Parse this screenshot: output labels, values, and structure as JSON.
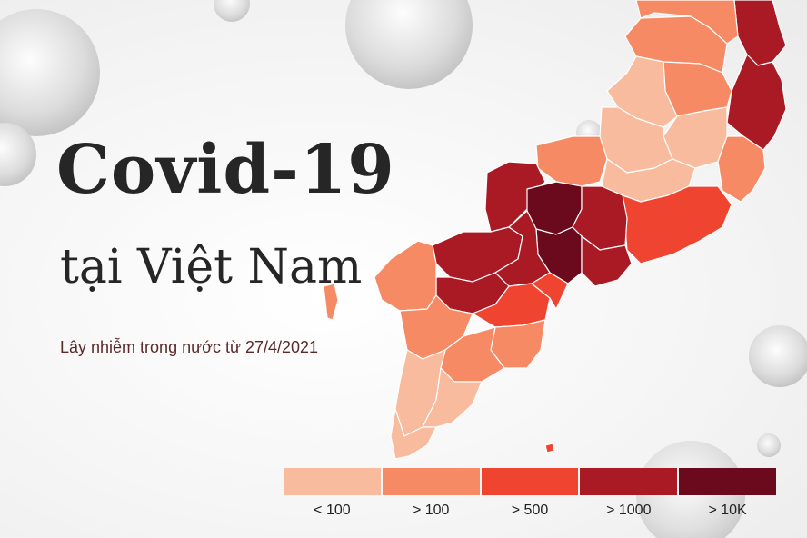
{
  "title": "Covid-19",
  "subtitle": "tại Việt Nam",
  "caption": "Lây nhiễm trong nước từ 27/4/2021",
  "legend": [
    {
      "label": "< 100",
      "color": "#f8bb9d"
    },
    {
      "label": "> 100",
      "color": "#f68a65"
    },
    {
      "label": "> 500",
      "color": "#ef4530"
    },
    {
      "label": "> 1000",
      "color": "#aa1a25"
    },
    {
      "label": "> 10K",
      "color": "#6b0a1c"
    }
  ],
  "map_icon": "southern-vietnam-province-map",
  "decoration_icon": "coronavirus-particle-icon"
}
